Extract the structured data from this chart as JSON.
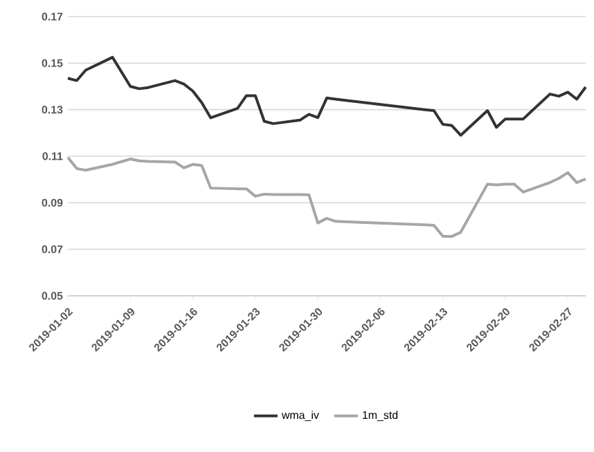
{
  "chart_data": {
    "type": "line",
    "x": [
      "2019-01-02",
      "2019-01-03",
      "2019-01-04",
      "2019-01-07",
      "2019-01-09",
      "2019-01-10",
      "2019-01-11",
      "2019-01-14",
      "2019-01-15",
      "2019-01-16",
      "2019-01-17",
      "2019-01-18",
      "2019-01-21",
      "2019-01-22",
      "2019-01-23",
      "2019-01-24",
      "2019-01-25",
      "2019-01-28",
      "2019-01-29",
      "2019-01-30",
      "2019-01-31",
      "2019-02-01",
      "2019-02-11",
      "2019-02-12",
      "2019-02-13",
      "2019-02-14",
      "2019-02-15",
      "2019-02-18",
      "2019-02-19",
      "2019-02-20",
      "2019-02-21",
      "2019-02-22",
      "2019-02-25",
      "2019-02-26",
      "2019-02-27",
      "2019-02-28",
      "2019-03-01"
    ],
    "series": [
      {
        "name": "wma_iv",
        "color": "#333333",
        "values": [
          0.1435,
          0.1425,
          0.147,
          0.1525,
          0.14,
          0.139,
          0.1395,
          0.1425,
          0.141,
          0.138,
          0.133,
          0.1265,
          0.1305,
          0.136,
          0.136,
          0.125,
          0.124,
          0.1255,
          0.128,
          0.1266,
          0.135,
          0.1345,
          0.13,
          0.1296,
          0.1237,
          0.1232,
          0.119,
          0.1296,
          0.1224,
          0.126,
          0.126,
          0.126,
          0.1367,
          0.1358,
          0.1375,
          0.1345,
          0.1397
        ]
      },
      {
        "name": "1m_std",
        "color": "#a6a6a6",
        "values": [
          0.1095,
          0.1047,
          0.104,
          0.1065,
          0.1088,
          0.108,
          0.1078,
          0.1075,
          0.105,
          0.1065,
          0.106,
          0.0963,
          0.096,
          0.096,
          0.0928,
          0.0937,
          0.0935,
          0.0935,
          0.0934,
          0.0813,
          0.0833,
          0.082,
          0.0805,
          0.0803,
          0.0756,
          0.0755,
          0.0773,
          0.098,
          0.0977,
          0.098,
          0.098,
          0.0946,
          0.0987,
          0.1005,
          0.1029,
          0.0987,
          0.1002
        ]
      }
    ],
    "xlim": [
      "2019-01-02",
      "2019-03-01"
    ],
    "xticks": [
      "2019-01-02",
      "2019-01-09",
      "2019-01-16",
      "2019-01-23",
      "2019-01-30",
      "2019-02-06",
      "2019-02-13",
      "2019-02-20",
      "2019-02-27"
    ],
    "ylim": [
      0.05,
      0.17
    ],
    "yticks": [
      0.05,
      0.07,
      0.09,
      0.11,
      0.13,
      0.15,
      0.17
    ],
    "grid": "y",
    "legend": "bottom",
    "marker": "none",
    "line_style": "solid"
  }
}
